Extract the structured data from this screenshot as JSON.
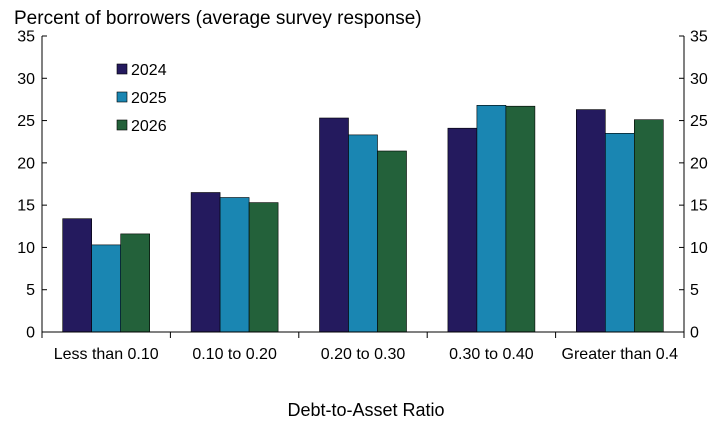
{
  "chart_data": {
    "type": "bar",
    "title": "",
    "ylabel": "Percent of borrowers (average survey response)",
    "xlabel": "Debt-to-Asset Ratio",
    "categories": [
      "Less than 0.10",
      "0.10 to 0.20",
      "0.20 to 0.30",
      "0.30 to 0.40",
      "Greater than 0.4"
    ],
    "series": [
      {
        "name": "2024",
        "color": "#241a5e",
        "values": [
          13.4,
          16.5,
          25.3,
          24.1,
          26.3
        ]
      },
      {
        "name": "2025",
        "color": "#1a86b2",
        "values": [
          10.3,
          15.9,
          23.3,
          26.8,
          23.5
        ]
      },
      {
        "name": "2026",
        "color": "#23613a",
        "values": [
          11.6,
          15.3,
          21.4,
          26.7,
          25.1
        ]
      }
    ],
    "ylim": [
      0,
      35
    ],
    "yticks": [
      0,
      5,
      10,
      15,
      20,
      25,
      30,
      35
    ],
    "ytick_labels": [
      "0",
      "5",
      "10",
      "15",
      "20",
      "25",
      "30",
      "35"
    ],
    "right_axis_mirrors_left": true,
    "grid": false,
    "legend_position": "top-left"
  }
}
